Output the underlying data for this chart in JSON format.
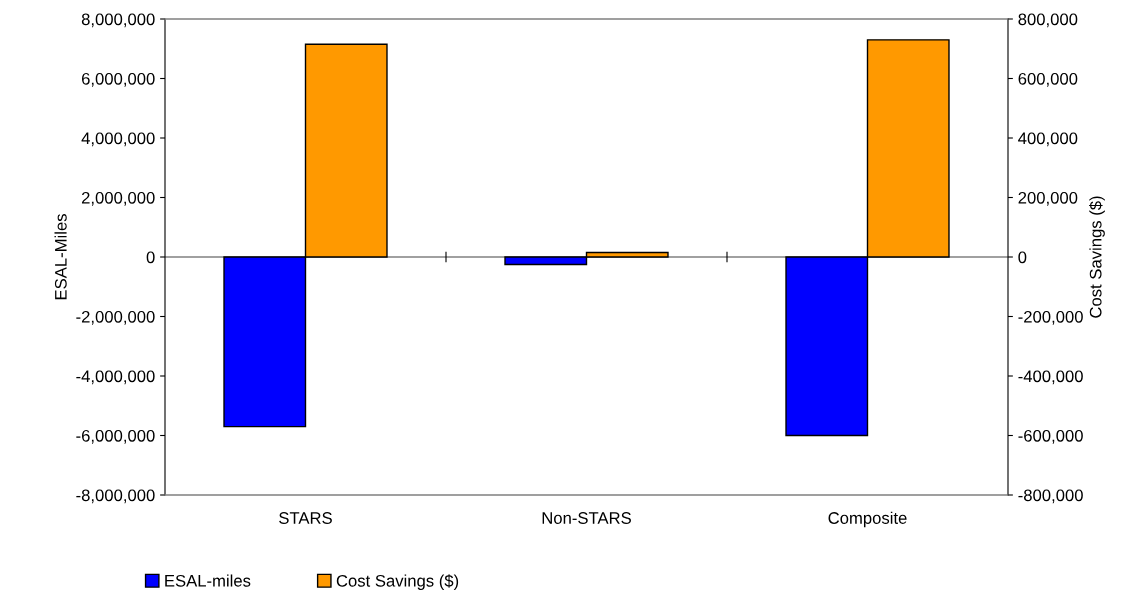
{
  "chart_data": {
    "type": "bar",
    "categories": [
      "STARS",
      "Non-STARS",
      "Composite"
    ],
    "ylabel": "ESAL-Miles",
    "y2label": "Cost Savings ($)",
    "series": [
      {
        "name": "ESAL-miles",
        "color": "#0000ff",
        "values": [
          -5700000,
          -250000,
          -6000000
        ]
      },
      {
        "name": "Cost Savings ($)",
        "color": "#ff9900",
        "axis": "y2",
        "values": [
          715000,
          15000,
          730000
        ]
      }
    ],
    "ylim": [
      -8000000,
      8000000
    ],
    "yticks": [
      {
        "value": -8000000,
        "label": "-8,000,000"
      },
      {
        "value": -6000000,
        "label": "-6,000,000"
      },
      {
        "value": -4000000,
        "label": "-4,000,000"
      },
      {
        "value": -2000000,
        "label": "-2,000,000"
      },
      0,
      {
        "value": 2000000,
        "label": "2,000,000"
      },
      {
        "value": 4000000,
        "label": "4,000,000"
      },
      {
        "value": 6000000,
        "label": "6,000,000"
      },
      {
        "value": 8000000,
        "label": "8,000,000"
      }
    ],
    "y2lim": [
      -800000,
      800000
    ],
    "y2ticks": [
      {
        "value": -800000,
        "label": "-800,000"
      },
      {
        "value": -600000,
        "label": "-600,000"
      },
      {
        "value": -400000,
        "label": "-400,000"
      },
      {
        "value": -200000,
        "label": "-200,000"
      },
      0,
      {
        "value": 200000,
        "label": "200,000"
      },
      {
        "value": 400000,
        "label": "400,000"
      },
      {
        "value": 600000,
        "label": "600,000"
      },
      {
        "value": 800000,
        "label": "800,000"
      }
    ],
    "ref_lines": [
      {
        "axis": "y",
        "value": 0,
        "color": "#808080"
      }
    ],
    "legend": "bottom"
  }
}
